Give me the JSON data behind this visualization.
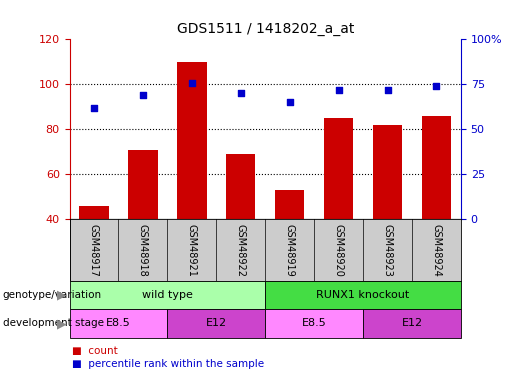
{
  "title": "GDS1511 / 1418202_a_at",
  "samples": [
    "GSM48917",
    "GSM48918",
    "GSM48921",
    "GSM48922",
    "GSM48919",
    "GSM48920",
    "GSM48923",
    "GSM48924"
  ],
  "counts": [
    46,
    71,
    110,
    69,
    53,
    85,
    82,
    86
  ],
  "percentiles": [
    62,
    69,
    76,
    70,
    65,
    72,
    72,
    74
  ],
  "ylim_left": [
    40,
    120
  ],
  "ylim_right": [
    0,
    100
  ],
  "left_yticks": [
    40,
    60,
    80,
    100,
    120
  ],
  "right_yticks": [
    0,
    25,
    50,
    75,
    100
  ],
  "right_yticklabels": [
    "0",
    "25",
    "50",
    "75",
    "100%"
  ],
  "gridlines": [
    60,
    80,
    100
  ],
  "bar_color": "#cc0000",
  "dot_color": "#0000cc",
  "tick_color_left": "#cc0000",
  "tick_color_right": "#0000cc",
  "genotype_groups": [
    {
      "label": "wild type",
      "start": 0,
      "end": 4,
      "color": "#aaffaa"
    },
    {
      "label": "RUNX1 knockout",
      "start": 4,
      "end": 8,
      "color": "#44dd44"
    }
  ],
  "stage_groups": [
    {
      "label": "E8.5",
      "start": 0,
      "end": 2,
      "color": "#ff88ff"
    },
    {
      "label": "E12",
      "start": 2,
      "end": 4,
      "color": "#cc44cc"
    },
    {
      "label": "E8.5",
      "start": 4,
      "end": 6,
      "color": "#ff88ff"
    },
    {
      "label": "E12",
      "start": 6,
      "end": 8,
      "color": "#cc44cc"
    }
  ],
  "sample_bg": "#cccccc",
  "legend_count_color": "#cc0000",
  "legend_pct_color": "#0000cc",
  "fig_bg": "#ffffff"
}
